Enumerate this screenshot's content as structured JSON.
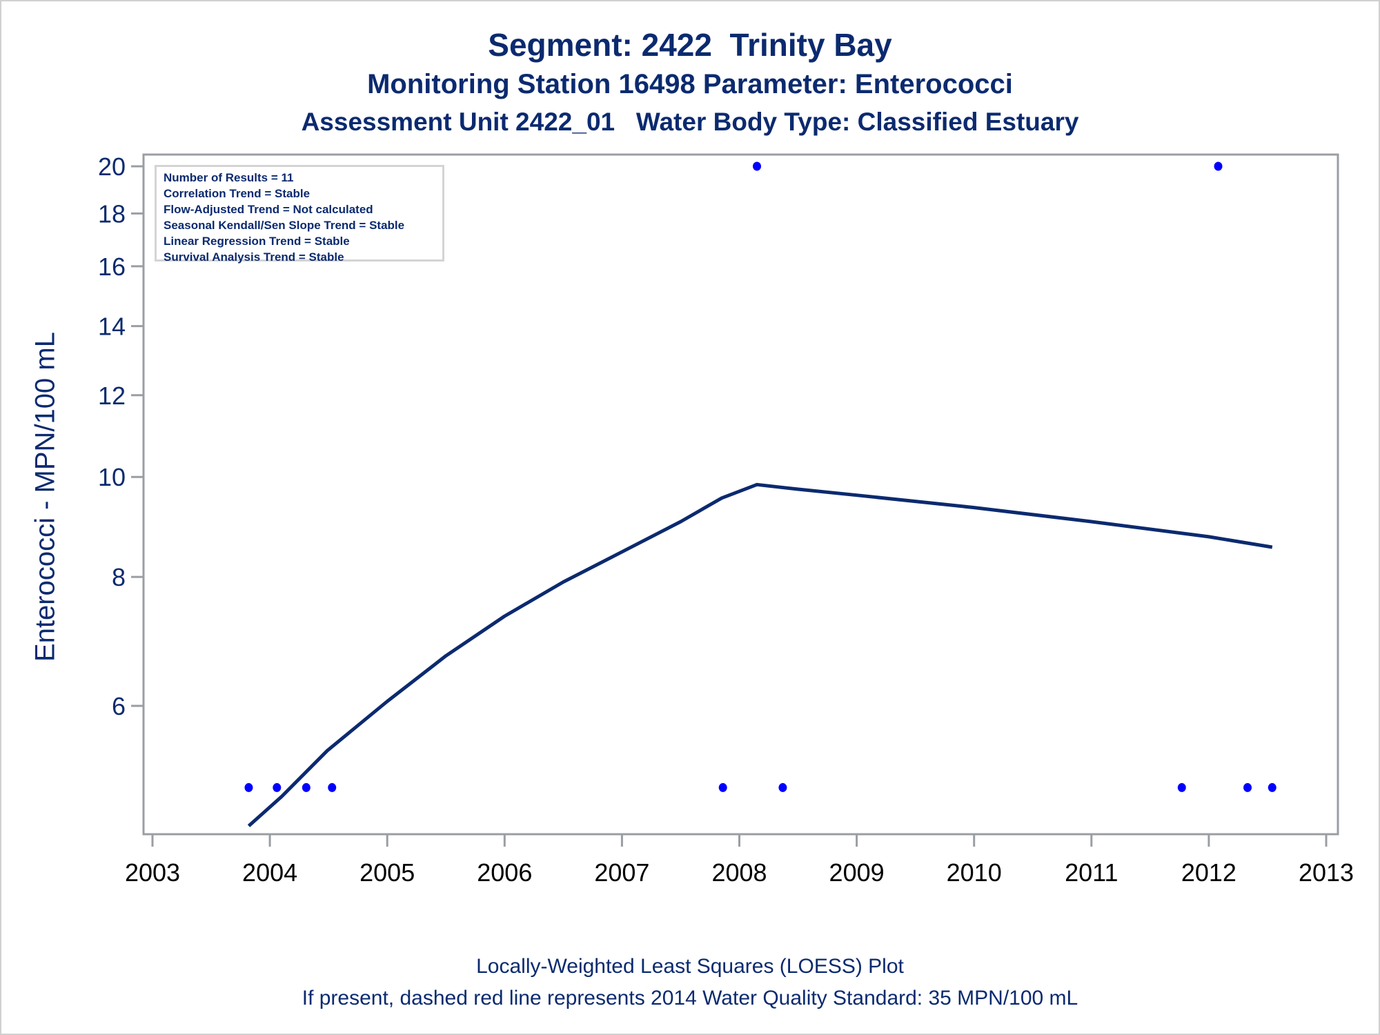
{
  "titles": {
    "line1": "Segment: 2422  Trinity Bay",
    "line2": "Monitoring Station 16498 Parameter: Enterococci",
    "line3": "Assessment Unit 2422_01   Water Body Type: Classified Estuary"
  },
  "footnotes": {
    "line1": "Locally-Weighted Least Squares (LOESS) Plot",
    "line2": "If present, dashed red line represents 2014 Water Quality Standard: 35 MPN/100 mL"
  },
  "legend_box": [
    "Number of Results = 11",
    "Correlation Trend = Stable",
    "Flow-Adjusted Trend = Not calculated",
    "Seasonal Kendall/Sen Slope Trend = Stable",
    "Linear Regression Trend = Stable",
    "Survival Analysis Trend = Stable"
  ],
  "colors": {
    "text": "#0b2a6f",
    "points": "#0000ff",
    "loess_line": "#0b2a6f",
    "axis": "#9a9ea3",
    "tick_labels_x": "#000000"
  },
  "chart_data": {
    "type": "scatter",
    "title": "Segment: 2422  Trinity Bay",
    "xlabel": "",
    "ylabel": "Enterococci - MPN/100 mL",
    "y_scale": "log",
    "xlim": [
      2003,
      2013
    ],
    "ylim": [
      4.5,
      20
    ],
    "x_ticks": [
      2003,
      2004,
      2005,
      2006,
      2007,
      2008,
      2009,
      2010,
      2011,
      2012,
      2013
    ],
    "y_ticks": [
      6,
      8,
      10,
      12,
      14,
      16,
      18,
      20
    ],
    "grid": false,
    "legend_position": "top-left",
    "series": [
      {
        "name": "Observations",
        "kind": "scatter",
        "x": [
          2003.82,
          2004.06,
          2004.31,
          2004.53,
          2007.86,
          2008.15,
          2008.37,
          2011.77,
          2012.08,
          2012.33,
          2012.54
        ],
        "y": [
          5,
          5,
          5,
          5,
          5,
          20,
          5,
          5,
          20,
          5,
          5
        ]
      },
      {
        "name": "LOESS",
        "kind": "line",
        "x": [
          2003.82,
          2004.1,
          2004.49,
          2005.0,
          2005.5,
          2006.0,
          2006.5,
          2007.0,
          2007.5,
          2007.85,
          2008.15,
          2008.5,
          2009.0,
          2010.0,
          2011.0,
          2012.0,
          2012.54
        ],
        "y": [
          4.59,
          4.9,
          5.43,
          6.06,
          6.71,
          7.33,
          7.91,
          8.46,
          9.05,
          9.54,
          9.83,
          9.73,
          9.6,
          9.34,
          9.05,
          8.75,
          8.55
        ]
      }
    ]
  }
}
